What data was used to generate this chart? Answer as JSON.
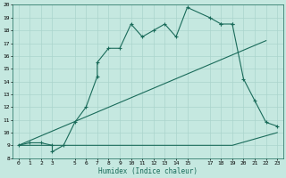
{
  "xlabel": "Humidex (Indice chaleur)",
  "bg_color": "#c5e8e0",
  "grid_color": "#aad4cc",
  "line_color": "#1a6b5a",
  "line1_x": [
    0,
    1,
    2,
    3,
    3,
    4,
    5,
    6,
    7,
    7,
    8,
    9,
    10,
    11,
    12,
    13,
    14,
    15,
    17,
    18,
    18,
    19,
    19,
    20,
    21,
    22,
    23
  ],
  "line1_y": [
    9,
    9.2,
    9.2,
    9,
    8.5,
    9,
    10.8,
    12,
    14.4,
    15.5,
    16.6,
    16.6,
    18.5,
    17.5,
    18,
    18.5,
    17.5,
    19.8,
    19.0,
    18.5,
    18.5,
    18.5,
    18.5,
    14.2,
    12.5,
    10.8,
    10.5
  ],
  "line2_x": [
    0,
    22
  ],
  "line2_y": [
    9,
    17.2
  ],
  "line3_x": [
    0,
    19,
    23
  ],
  "line3_y": [
    9,
    9,
    10
  ],
  "xlim": [
    -0.5,
    23.5
  ],
  "ylim": [
    8,
    20
  ],
  "xticks": [
    0,
    1,
    2,
    3,
    5,
    6,
    7,
    8,
    9,
    10,
    11,
    12,
    13,
    14,
    15,
    17,
    18,
    19,
    20,
    21,
    22,
    23
  ],
  "yticks": [
    8,
    9,
    10,
    11,
    12,
    13,
    14,
    15,
    16,
    17,
    18,
    19,
    20
  ],
  "xlabel_fontsize": 5.5,
  "tick_fontsize": 4.5,
  "lw": 0.8,
  "marker_size": 3.0
}
